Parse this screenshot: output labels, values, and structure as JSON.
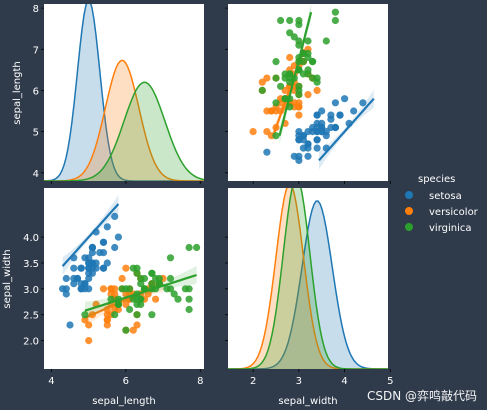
{
  "watermark": "CSDN @弈鸣敲代码",
  "chart_data": {
    "type": "scatter",
    "kind": "pairplot",
    "variables": [
      "sepal_length",
      "sepal_width"
    ],
    "xlabels": [
      "sepal_length",
      "sepal_width"
    ],
    "ylabels": [
      "sepal_length",
      "sepal_width"
    ],
    "ranges": {
      "sepal_length": [
        3.8,
        8.1
      ],
      "sepal_width": [
        1.45,
        4.95
      ]
    },
    "ticks": {
      "sepal_length": [
        4,
        5,
        6,
        7,
        8
      ],
      "sepal_width": [
        2.0,
        2.5,
        3.0,
        3.5,
        4.0
      ]
    },
    "tick_labels": {
      "sepal_length_x": [
        "4",
        "6",
        "8"
      ],
      "sepal_length_y": [
        "4",
        "5",
        "6",
        "7",
        "8"
      ],
      "sepal_width_x": [
        "2",
        "3",
        "4",
        "5"
      ],
      "sepal_width_y": [
        "2.0",
        "2.5",
        "3.0",
        "3.5",
        "4.0"
      ]
    },
    "legend": {
      "title": "species",
      "placement": "right",
      "entries": [
        "setosa",
        "versicolor",
        "virginica"
      ]
    },
    "colors": {
      "setosa": "#1f77b4",
      "versicolor": "#ff7f0e",
      "virginica": "#2ca02c"
    },
    "diag_ymax": {
      "sepal_length": 1.3,
      "sepal_width": 1.3
    },
    "kde": {
      "sepal_length": {
        "setosa": {
          "mean": 5.0,
          "sd": 0.3
        },
        "versicolor": {
          "mean": 5.9,
          "sd": 0.45
        },
        "virginica": {
          "mean": 6.5,
          "sd": 0.55
        }
      },
      "sepal_width": {
        "setosa": {
          "mean": 3.4,
          "sd": 0.33
        },
        "versicolor": {
          "mean": 2.8,
          "sd": 0.3
        },
        "virginica": {
          "mean": 2.95,
          "sd": 0.29
        }
      }
    },
    "regression": {
      "setosa": {
        "slope": 0.8,
        "intercept": 0.0,
        "xmin": 4.3,
        "xmax": 5.8
      },
      "versicolor": {
        "slope": 0.32,
        "intercept": 0.87,
        "xmin": 4.9,
        "xmax": 7.0
      },
      "virginica": {
        "slope": 0.23,
        "intercept": 1.45,
        "xmin": 4.9,
        "xmax": 7.9
      }
    },
    "series": [
      {
        "name": "setosa",
        "points": [
          [
            5.1,
            3.5
          ],
          [
            4.9,
            3.0
          ],
          [
            4.7,
            3.2
          ],
          [
            4.6,
            3.1
          ],
          [
            5.0,
            3.6
          ],
          [
            5.4,
            3.9
          ],
          [
            4.6,
            3.4
          ],
          [
            5.0,
            3.4
          ],
          [
            4.4,
            2.9
          ],
          [
            4.9,
            3.1
          ],
          [
            5.4,
            3.7
          ],
          [
            4.8,
            3.4
          ],
          [
            4.8,
            3.0
          ],
          [
            4.3,
            3.0
          ],
          [
            5.8,
            4.0
          ],
          [
            5.7,
            4.4
          ],
          [
            5.4,
            3.9
          ],
          [
            5.1,
            3.5
          ],
          [
            5.7,
            3.8
          ],
          [
            5.1,
            3.8
          ],
          [
            5.4,
            3.4
          ],
          [
            5.1,
            3.7
          ],
          [
            4.6,
            3.6
          ],
          [
            5.1,
            3.3
          ],
          [
            4.8,
            3.4
          ],
          [
            5.0,
            3.0
          ],
          [
            5.0,
            3.4
          ],
          [
            5.2,
            3.5
          ],
          [
            5.2,
            3.4
          ],
          [
            4.7,
            3.2
          ],
          [
            4.8,
            3.1
          ],
          [
            5.4,
            3.4
          ],
          [
            5.2,
            4.1
          ],
          [
            5.5,
            4.2
          ],
          [
            4.9,
            3.1
          ],
          [
            5.0,
            3.2
          ],
          [
            5.5,
            3.5
          ],
          [
            4.9,
            3.6
          ],
          [
            4.4,
            3.0
          ],
          [
            5.1,
            3.4
          ],
          [
            5.0,
            3.5
          ],
          [
            4.5,
            2.3
          ],
          [
            4.4,
            3.2
          ],
          [
            5.0,
            3.5
          ],
          [
            5.1,
            3.8
          ],
          [
            4.8,
            3.0
          ],
          [
            5.1,
            3.8
          ],
          [
            4.6,
            3.2
          ],
          [
            5.3,
            3.7
          ],
          [
            5.0,
            3.3
          ]
        ]
      },
      {
        "name": "versicolor",
        "points": [
          [
            7.0,
            3.2
          ],
          [
            6.4,
            3.2
          ],
          [
            6.9,
            3.1
          ],
          [
            5.5,
            2.3
          ],
          [
            6.5,
            2.8
          ],
          [
            5.7,
            2.8
          ],
          [
            6.3,
            3.3
          ],
          [
            4.9,
            2.4
          ],
          [
            6.6,
            2.9
          ],
          [
            5.2,
            2.7
          ],
          [
            5.0,
            2.0
          ],
          [
            5.9,
            3.0
          ],
          [
            6.0,
            2.2
          ],
          [
            6.1,
            2.9
          ],
          [
            5.6,
            2.9
          ],
          [
            6.7,
            3.1
          ],
          [
            5.6,
            3.0
          ],
          [
            5.8,
            2.7
          ],
          [
            6.2,
            2.2
          ],
          [
            5.6,
            2.5
          ],
          [
            5.9,
            3.2
          ],
          [
            6.1,
            2.8
          ],
          [
            6.3,
            2.5
          ],
          [
            6.1,
            2.8
          ],
          [
            6.4,
            2.9
          ],
          [
            6.6,
            3.0
          ],
          [
            6.8,
            2.8
          ],
          [
            6.7,
            3.0
          ],
          [
            6.0,
            2.9
          ],
          [
            5.7,
            2.6
          ],
          [
            5.5,
            2.4
          ],
          [
            5.5,
            2.4
          ],
          [
            5.8,
            2.7
          ],
          [
            6.0,
            2.7
          ],
          [
            5.4,
            3.0
          ],
          [
            6.0,
            3.4
          ],
          [
            6.7,
            3.1
          ],
          [
            6.3,
            2.3
          ],
          [
            5.6,
            3.0
          ],
          [
            5.5,
            2.5
          ],
          [
            5.5,
            2.6
          ],
          [
            6.1,
            3.0
          ],
          [
            5.8,
            2.6
          ],
          [
            5.0,
            2.3
          ],
          [
            5.6,
            2.7
          ],
          [
            5.7,
            3.0
          ],
          [
            5.7,
            2.9
          ],
          [
            6.2,
            2.9
          ],
          [
            5.1,
            2.5
          ],
          [
            5.7,
            2.8
          ]
        ]
      },
      {
        "name": "virginica",
        "points": [
          [
            6.3,
            3.3
          ],
          [
            5.8,
            2.7
          ],
          [
            7.1,
            3.0
          ],
          [
            6.3,
            2.9
          ],
          [
            6.5,
            3.0
          ],
          [
            7.6,
            3.0
          ],
          [
            4.9,
            2.5
          ],
          [
            7.3,
            2.9
          ],
          [
            6.7,
            2.5
          ],
          [
            7.2,
            3.6
          ],
          [
            6.5,
            3.2
          ],
          [
            6.4,
            2.7
          ],
          [
            6.8,
            3.0
          ],
          [
            5.7,
            2.5
          ],
          [
            5.8,
            2.8
          ],
          [
            6.4,
            3.2
          ],
          [
            6.5,
            3.0
          ],
          [
            7.7,
            3.8
          ],
          [
            7.7,
            2.6
          ],
          [
            6.0,
            2.2
          ],
          [
            6.9,
            3.2
          ],
          [
            5.6,
            2.8
          ],
          [
            7.7,
            2.8
          ],
          [
            6.3,
            2.7
          ],
          [
            6.7,
            3.3
          ],
          [
            7.2,
            3.2
          ],
          [
            6.2,
            2.8
          ],
          [
            6.1,
            3.0
          ],
          [
            6.4,
            2.8
          ],
          [
            7.2,
            3.0
          ],
          [
            7.4,
            2.8
          ],
          [
            7.9,
            3.8
          ],
          [
            6.4,
            2.8
          ],
          [
            6.3,
            2.8
          ],
          [
            6.1,
            2.6
          ],
          [
            7.7,
            3.0
          ],
          [
            6.3,
            3.4
          ],
          [
            6.4,
            3.1
          ],
          [
            6.0,
            3.0
          ],
          [
            6.9,
            3.1
          ],
          [
            6.7,
            3.1
          ],
          [
            6.9,
            3.1
          ],
          [
            5.8,
            2.7
          ],
          [
            6.8,
            3.2
          ],
          [
            6.7,
            3.3
          ],
          [
            6.7,
            3.0
          ],
          [
            6.3,
            2.5
          ],
          [
            6.5,
            3.0
          ],
          [
            6.2,
            3.4
          ],
          [
            5.9,
            3.0
          ]
        ]
      }
    ]
  }
}
